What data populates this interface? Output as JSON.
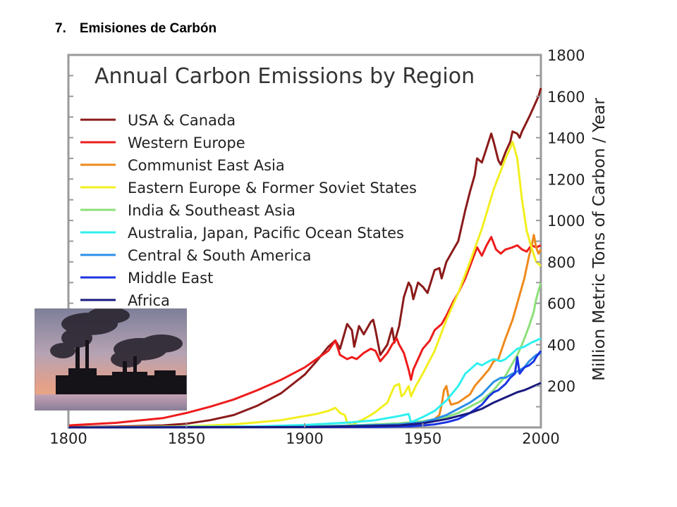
{
  "slide": {
    "title": "7. Emisiones de Carbón"
  },
  "chart_data": {
    "type": "line",
    "title": "Annual Carbon Emissions by Region",
    "xlabel": "",
    "ylabel": "Million Metric Tons of Carbon / Year",
    "xlim": [
      1800,
      2000
    ],
    "ylim": [
      0,
      1800
    ],
    "x_ticks": [
      "1800",
      "1850",
      "1900",
      "1950",
      "2000"
    ],
    "y_ticks": [
      "200",
      "400",
      "600",
      "800",
      "1000",
      "1200",
      "1400",
      "1600",
      "1800"
    ],
    "y_axis_side": "right",
    "grid": false,
    "legend_position": "top-left",
    "series": [
      {
        "name": "USA & Canada",
        "color": "#8b1a1a",
        "points": [
          [
            1800,
            2
          ],
          [
            1820,
            4
          ],
          [
            1840,
            10
          ],
          [
            1850,
            18
          ],
          [
            1860,
            35
          ],
          [
            1870,
            60
          ],
          [
            1880,
            105
          ],
          [
            1890,
            165
          ],
          [
            1900,
            255
          ],
          [
            1905,
            320
          ],
          [
            1910,
            390
          ],
          [
            1913,
            420
          ],
          [
            1915,
            380
          ],
          [
            1918,
            500
          ],
          [
            1920,
            470
          ],
          [
            1921,
            390
          ],
          [
            1923,
            490
          ],
          [
            1925,
            450
          ],
          [
            1928,
            510
          ],
          [
            1929,
            520
          ],
          [
            1930,
            470
          ],
          [
            1932,
            350
          ],
          [
            1935,
            400
          ],
          [
            1937,
            480
          ],
          [
            1938,
            410
          ],
          [
            1940,
            490
          ],
          [
            1942,
            630
          ],
          [
            1944,
            700
          ],
          [
            1945,
            680
          ],
          [
            1946,
            620
          ],
          [
            1948,
            700
          ],
          [
            1950,
            680
          ],
          [
            1952,
            650
          ],
          [
            1955,
            760
          ],
          [
            1957,
            770
          ],
          [
            1958,
            720
          ],
          [
            1960,
            800
          ],
          [
            1963,
            860
          ],
          [
            1965,
            900
          ],
          [
            1968,
            1050
          ],
          [
            1970,
            1140
          ],
          [
            1972,
            1220
          ],
          [
            1973,
            1300
          ],
          [
            1975,
            1280
          ],
          [
            1977,
            1350
          ],
          [
            1979,
            1420
          ],
          [
            1980,
            1380
          ],
          [
            1982,
            1290
          ],
          [
            1983,
            1270
          ],
          [
            1985,
            1330
          ],
          [
            1987,
            1380
          ],
          [
            1988,
            1430
          ],
          [
            1990,
            1420
          ],
          [
            1991,
            1400
          ],
          [
            1992,
            1430
          ],
          [
            1995,
            1500
          ],
          [
            1997,
            1550
          ],
          [
            1999,
            1600
          ],
          [
            2000,
            1640
          ]
        ]
      },
      {
        "name": "Western Europe",
        "color": "#ee1c1c",
        "points": [
          [
            1800,
            10
          ],
          [
            1820,
            22
          ],
          [
            1840,
            45
          ],
          [
            1850,
            70
          ],
          [
            1860,
            100
          ],
          [
            1870,
            135
          ],
          [
            1880,
            180
          ],
          [
            1890,
            230
          ],
          [
            1900,
            290
          ],
          [
            1905,
            330
          ],
          [
            1910,
            370
          ],
          [
            1913,
            420
          ],
          [
            1915,
            350
          ],
          [
            1918,
            330
          ],
          [
            1920,
            340
          ],
          [
            1922,
            330
          ],
          [
            1925,
            360
          ],
          [
            1928,
            380
          ],
          [
            1930,
            370
          ],
          [
            1932,
            320
          ],
          [
            1935,
            360
          ],
          [
            1937,
            400
          ],
          [
            1939,
            430
          ],
          [
            1940,
            400
          ],
          [
            1942,
            360
          ],
          [
            1944,
            280
          ],
          [
            1945,
            230
          ],
          [
            1946,
            280
          ],
          [
            1948,
            330
          ],
          [
            1950,
            380
          ],
          [
            1953,
            420
          ],
          [
            1955,
            470
          ],
          [
            1958,
            500
          ],
          [
            1960,
            540
          ],
          [
            1963,
            610
          ],
          [
            1965,
            650
          ],
          [
            1968,
            720
          ],
          [
            1970,
            780
          ],
          [
            1973,
            870
          ],
          [
            1975,
            830
          ],
          [
            1977,
            880
          ],
          [
            1979,
            920
          ],
          [
            1981,
            860
          ],
          [
            1983,
            840
          ],
          [
            1985,
            860
          ],
          [
            1988,
            870
          ],
          [
            1990,
            880
          ],
          [
            1992,
            860
          ],
          [
            1994,
            850
          ],
          [
            1996,
            880
          ],
          [
            1998,
            870
          ],
          [
            2000,
            880
          ]
        ]
      },
      {
        "name": "Communist East Asia",
        "color": "#ef8a1c",
        "points": [
          [
            1800,
            0
          ],
          [
            1900,
            2
          ],
          [
            1920,
            5
          ],
          [
            1940,
            15
          ],
          [
            1945,
            10
          ],
          [
            1950,
            25
          ],
          [
            1955,
            40
          ],
          [
            1957,
            60
          ],
          [
            1958,
            110
          ],
          [
            1959,
            180
          ],
          [
            1960,
            200
          ],
          [
            1961,
            140
          ],
          [
            1962,
            110
          ],
          [
            1965,
            120
          ],
          [
            1970,
            160
          ],
          [
            1972,
            200
          ],
          [
            1975,
            240
          ],
          [
            1978,
            280
          ],
          [
            1980,
            320
          ],
          [
            1982,
            330
          ],
          [
            1985,
            430
          ],
          [
            1988,
            520
          ],
          [
            1990,
            600
          ],
          [
            1993,
            720
          ],
          [
            1995,
            830
          ],
          [
            1996,
            870
          ],
          [
            1997,
            930
          ],
          [
            1998,
            870
          ],
          [
            1999,
            840
          ],
          [
            2000,
            860
          ]
        ]
      },
      {
        "name": "Eastern Europe & Former Soviet States",
        "color": "#f2ef1e",
        "points": [
          [
            1800,
            0
          ],
          [
            1850,
            5
          ],
          [
            1870,
            15
          ],
          [
            1880,
            25
          ],
          [
            1890,
            35
          ],
          [
            1900,
            55
          ],
          [
            1905,
            65
          ],
          [
            1910,
            80
          ],
          [
            1913,
            95
          ],
          [
            1915,
            70
          ],
          [
            1917,
            60
          ],
          [
            1918,
            25
          ],
          [
            1920,
            10
          ],
          [
            1922,
            25
          ],
          [
            1925,
            40
          ],
          [
            1928,
            60
          ],
          [
            1930,
            75
          ],
          [
            1935,
            120
          ],
          [
            1938,
            200
          ],
          [
            1940,
            210
          ],
          [
            1941,
            150
          ],
          [
            1942,
            160
          ],
          [
            1944,
            200
          ],
          [
            1945,
            150
          ],
          [
            1947,
            200
          ],
          [
            1950,
            260
          ],
          [
            1955,
            370
          ],
          [
            1960,
            520
          ],
          [
            1965,
            650
          ],
          [
            1970,
            800
          ],
          [
            1975,
            960
          ],
          [
            1980,
            1150
          ],
          [
            1983,
            1240
          ],
          [
            1985,
            1300
          ],
          [
            1987,
            1350
          ],
          [
            1988,
            1380
          ],
          [
            1990,
            1300
          ],
          [
            1992,
            1100
          ],
          [
            1994,
            950
          ],
          [
            1996,
            870
          ],
          [
            1998,
            800
          ],
          [
            2000,
            780
          ]
        ]
      },
      {
        "name": "India & Southeast Asia",
        "color": "#8be07a",
        "points": [
          [
            1800,
            0
          ],
          [
            1900,
            5
          ],
          [
            1920,
            10
          ],
          [
            1940,
            20
          ],
          [
            1950,
            30
          ],
          [
            1960,
            50
          ],
          [
            1965,
            70
          ],
          [
            1970,
            100
          ],
          [
            1975,
            130
          ],
          [
            1980,
            180
          ],
          [
            1985,
            250
          ],
          [
            1990,
            350
          ],
          [
            1992,
            400
          ],
          [
            1995,
            490
          ],
          [
            1997,
            560
          ],
          [
            1998,
            620
          ],
          [
            1999,
            660
          ],
          [
            2000,
            700
          ]
        ]
      },
      {
        "name": "Australia, Japan, Pacific Ocean States",
        "color": "#2ff0f0",
        "points": [
          [
            1800,
            0
          ],
          [
            1880,
            5
          ],
          [
            1900,
            12
          ],
          [
            1920,
            25
          ],
          [
            1930,
            35
          ],
          [
            1940,
            55
          ],
          [
            1944,
            65
          ],
          [
            1945,
            25
          ],
          [
            1947,
            35
          ],
          [
            1950,
            50
          ],
          [
            1955,
            80
          ],
          [
            1960,
            130
          ],
          [
            1965,
            200
          ],
          [
            1968,
            260
          ],
          [
            1970,
            280
          ],
          [
            1973,
            310
          ],
          [
            1975,
            300
          ],
          [
            1978,
            320
          ],
          [
            1980,
            330
          ],
          [
            1983,
            320
          ],
          [
            1985,
            330
          ],
          [
            1988,
            360
          ],
          [
            1990,
            380
          ],
          [
            1993,
            390
          ],
          [
            1996,
            410
          ],
          [
            1998,
            420
          ],
          [
            2000,
            430
          ]
        ]
      },
      {
        "name": "Central & South America",
        "color": "#2a8fe8",
        "points": [
          [
            1800,
            0
          ],
          [
            1900,
            3
          ],
          [
            1920,
            8
          ],
          [
            1940,
            15
          ],
          [
            1950,
            25
          ],
          [
            1955,
            40
          ],
          [
            1960,
            60
          ],
          [
            1965,
            90
          ],
          [
            1970,
            120
          ],
          [
            1975,
            160
          ],
          [
            1980,
            220
          ],
          [
            1983,
            240
          ],
          [
            1985,
            240
          ],
          [
            1988,
            260
          ],
          [
            1990,
            270
          ],
          [
            1993,
            290
          ],
          [
            1995,
            320
          ],
          [
            1998,
            350
          ],
          [
            2000,
            360
          ]
        ]
      },
      {
        "name": "Middle East",
        "color": "#1a34e0",
        "points": [
          [
            1800,
            0
          ],
          [
            1930,
            2
          ],
          [
            1945,
            5
          ],
          [
            1950,
            10
          ],
          [
            1955,
            15
          ],
          [
            1960,
            25
          ],
          [
            1965,
            40
          ],
          [
            1970,
            70
          ],
          [
            1975,
            110
          ],
          [
            1978,
            150
          ],
          [
            1980,
            170
          ],
          [
            1982,
            180
          ],
          [
            1985,
            210
          ],
          [
            1987,
            240
          ],
          [
            1989,
            260
          ],
          [
            1990,
            340
          ],
          [
            1991,
            260
          ],
          [
            1993,
            290
          ],
          [
            1995,
            300
          ],
          [
            1997,
            320
          ],
          [
            1998,
            340
          ],
          [
            2000,
            370
          ]
        ]
      },
      {
        "name": "Africa",
        "color": "#1a1a80",
        "points": [
          [
            1800,
            0
          ],
          [
            1900,
            2
          ],
          [
            1920,
            5
          ],
          [
            1940,
            10
          ],
          [
            1950,
            20
          ],
          [
            1955,
            30
          ],
          [
            1960,
            40
          ],
          [
            1965,
            55
          ],
          [
            1970,
            70
          ],
          [
            1975,
            90
          ],
          [
            1980,
            120
          ],
          [
            1985,
            145
          ],
          [
            1988,
            160
          ],
          [
            1990,
            170
          ],
          [
            1993,
            180
          ],
          [
            1996,
            195
          ],
          [
            1998,
            205
          ],
          [
            2000,
            215
          ]
        ]
      }
    ]
  }
}
